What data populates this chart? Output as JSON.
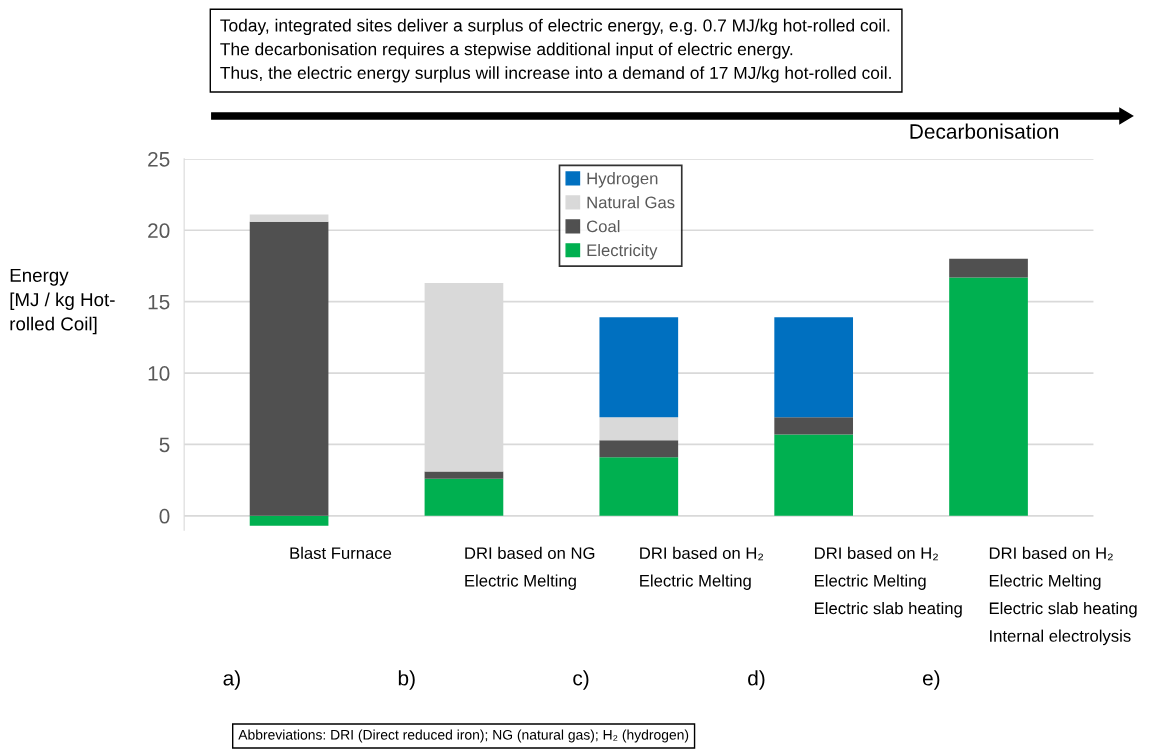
{
  "chart_data": {
    "type": "bar",
    "stacked": true,
    "categories": [
      "Blast Furnace",
      "DRI based on NG\nElectric Melting",
      "DRI based on H₂\nElectric Melting",
      "DRI based on H₂\nElectric Melting\nElectric slab heating",
      "DRI based on H₂\nElectric Melting\nElectric slab heating\nInternal electrolysis"
    ],
    "ylabel": "Energy\n[MJ / kg Hot-\nrolled Coil]",
    "series": [
      {
        "name": "Electricity",
        "color": "#00b050",
        "values": [
          -0.7,
          2.6,
          4.1,
          5.7,
          16.7
        ]
      },
      {
        "name": "Coal",
        "color": "#505050",
        "values": [
          20.6,
          0.5,
          1.2,
          1.2,
          1.3
        ]
      },
      {
        "name": "Natural Gas",
        "color": "#d9d9d9",
        "values": [
          0.5,
          13.2,
          1.6,
          0,
          0
        ]
      },
      {
        "name": "Hydrogen",
        "color": "#0070c0",
        "values": [
          0,
          0,
          7.0,
          7.0,
          0
        ]
      }
    ],
    "ylim": [
      -1,
      25
    ],
    "yticks": [
      0,
      5,
      10,
      15,
      20,
      25
    ],
    "grid": "y",
    "legend": "top",
    "annotations": [
      "Today, integrated sites deliver a surplus of electric energy, e.g. 0.7 MJ/kg hot-rolled coil.\nThe decarbonisation requires a stepwise additional input of electric energy.\nThus, the electric energy surplus will increase into a demand of 17 MJ/kg hot-rolled coil.",
      "Decarbonisation",
      "a)",
      "b)",
      "c)",
      "d)",
      "e)",
      "Abbreviations: DRI (Direct reduced iron); NG (natural gas); H₂ (hydrogen)"
    ]
  }
}
